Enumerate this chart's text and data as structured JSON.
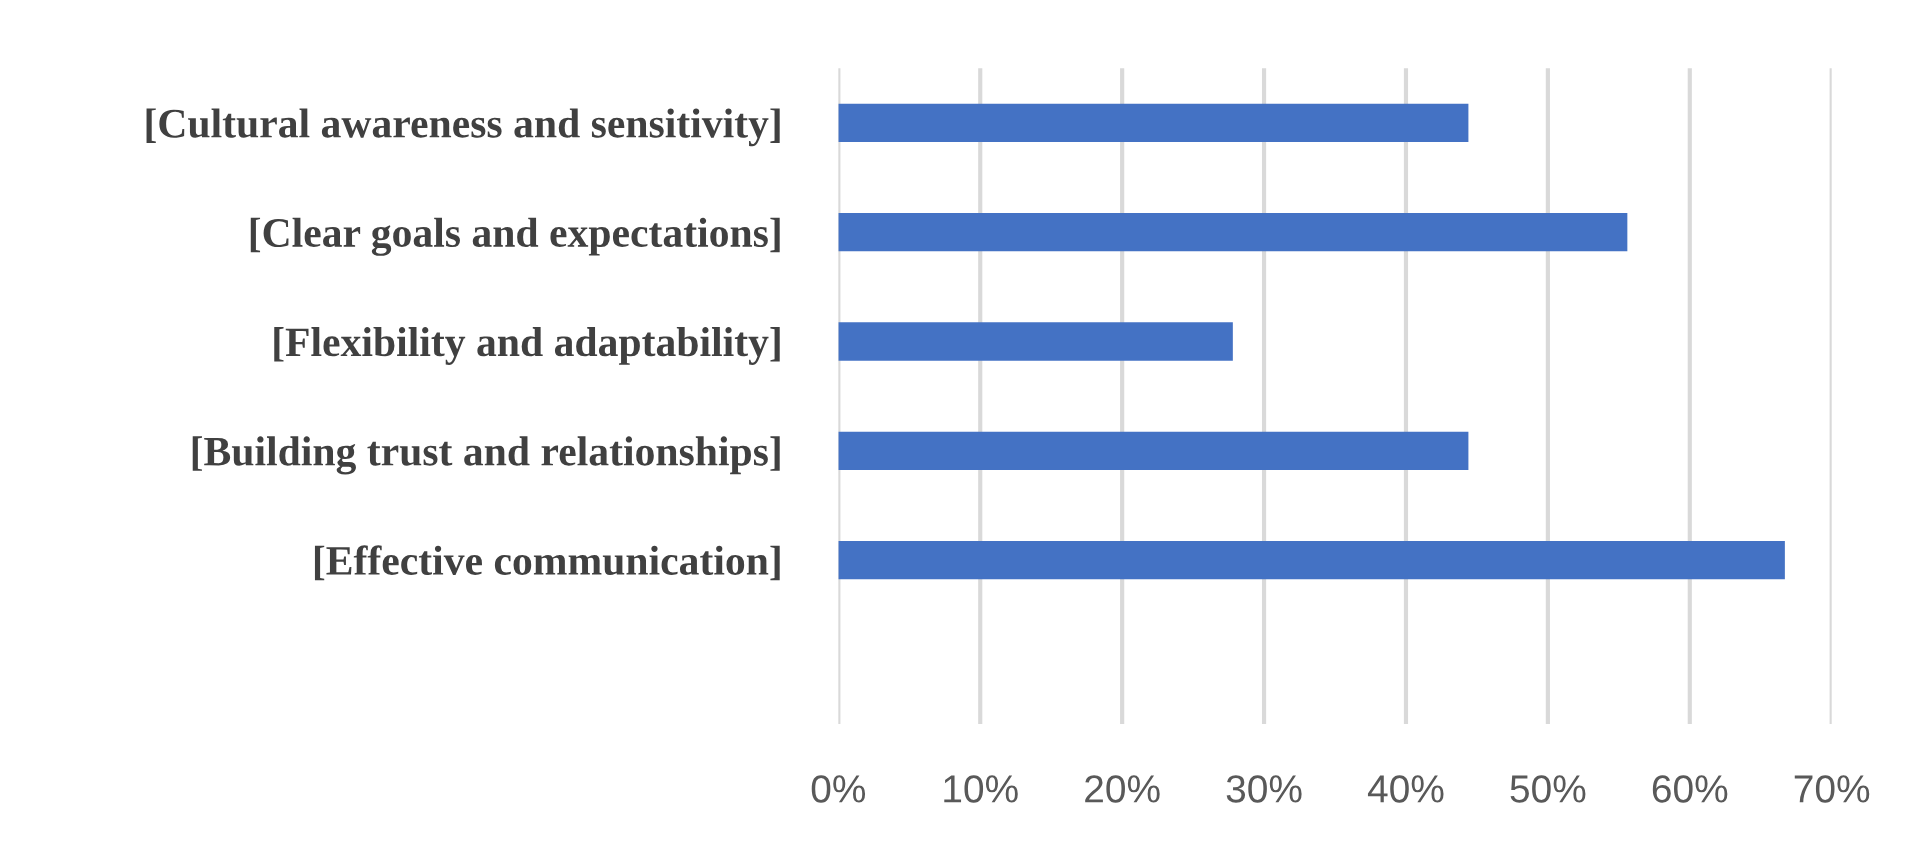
{
  "chart_data": {
    "type": "bar",
    "orientation": "horizontal",
    "categories": [
      "[Cultural awareness and sensitivity]",
      "[Clear goals and expectations]",
      "[Flexibility and adaptability]",
      "[Building trust and relationships]",
      "[Effective communication]",
      null
    ],
    "values": [
      44.4,
      55.6,
      27.8,
      44.4,
      66.7,
      null
    ],
    "color": "#4472c4",
    "xlim": [
      0,
      70
    ],
    "xticks": [
      {
        "value": 0,
        "label": "0%"
      },
      {
        "value": 10,
        "label": "10%"
      },
      {
        "value": 20,
        "label": "20%"
      },
      {
        "value": 30,
        "label": "30%"
      },
      {
        "value": 40,
        "label": "40%"
      },
      {
        "value": 50,
        "label": "50%"
      },
      {
        "value": 60,
        "label": "60%"
      },
      {
        "value": 70,
        "label": "70%"
      }
    ],
    "grid": "x"
  }
}
